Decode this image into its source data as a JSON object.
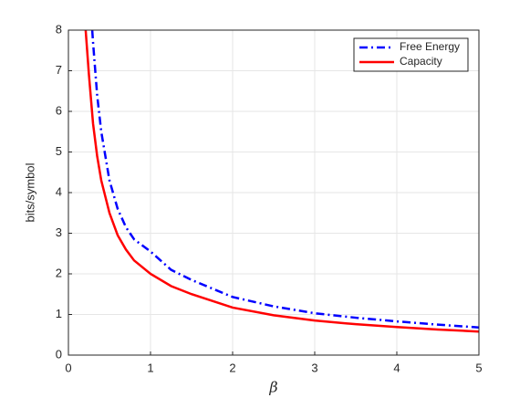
{
  "chart_data": {
    "type": "line",
    "x_label": "β",
    "y_label": "bits/symbol",
    "xlim": [
      0,
      5
    ],
    "ylim": [
      0,
      8
    ],
    "xticks": [
      0,
      1,
      2,
      3,
      4,
      5
    ],
    "yticks": [
      0,
      1,
      2,
      3,
      4,
      5,
      6,
      7,
      8
    ],
    "grid": true,
    "legend": "top-right",
    "series": [
      {
        "name": "Free Energy",
        "color": "#0000ff",
        "dash": "dashdot",
        "x": [
          0.29,
          0.3,
          0.35,
          0.4,
          0.5,
          0.6,
          0.7,
          0.8,
          1,
          1.25,
          1.5,
          2,
          2.5,
          3,
          3.5,
          4,
          4.5,
          5
        ],
        "values": [
          8,
          7.7,
          6.4,
          5.5,
          4.3,
          3.6,
          3.15,
          2.85,
          2.55,
          2.1,
          1.85,
          1.43,
          1.2,
          1.03,
          0.92,
          0.83,
          0.75,
          0.68
        ]
      },
      {
        "name": "Capacity",
        "color": "#ff0000",
        "dash": "solid",
        "x": [
          0.21,
          0.25,
          0.3,
          0.35,
          0.4,
          0.5,
          0.6,
          0.7,
          0.8,
          1,
          1.25,
          1.5,
          2,
          2.5,
          3,
          3.5,
          4,
          4.5,
          5
        ],
        "values": [
          8,
          6.9,
          5.7,
          4.9,
          4.3,
          3.5,
          2.95,
          2.6,
          2.33,
          2.0,
          1.7,
          1.5,
          1.17,
          0.98,
          0.85,
          0.76,
          0.69,
          0.63,
          0.58
        ]
      }
    ]
  }
}
